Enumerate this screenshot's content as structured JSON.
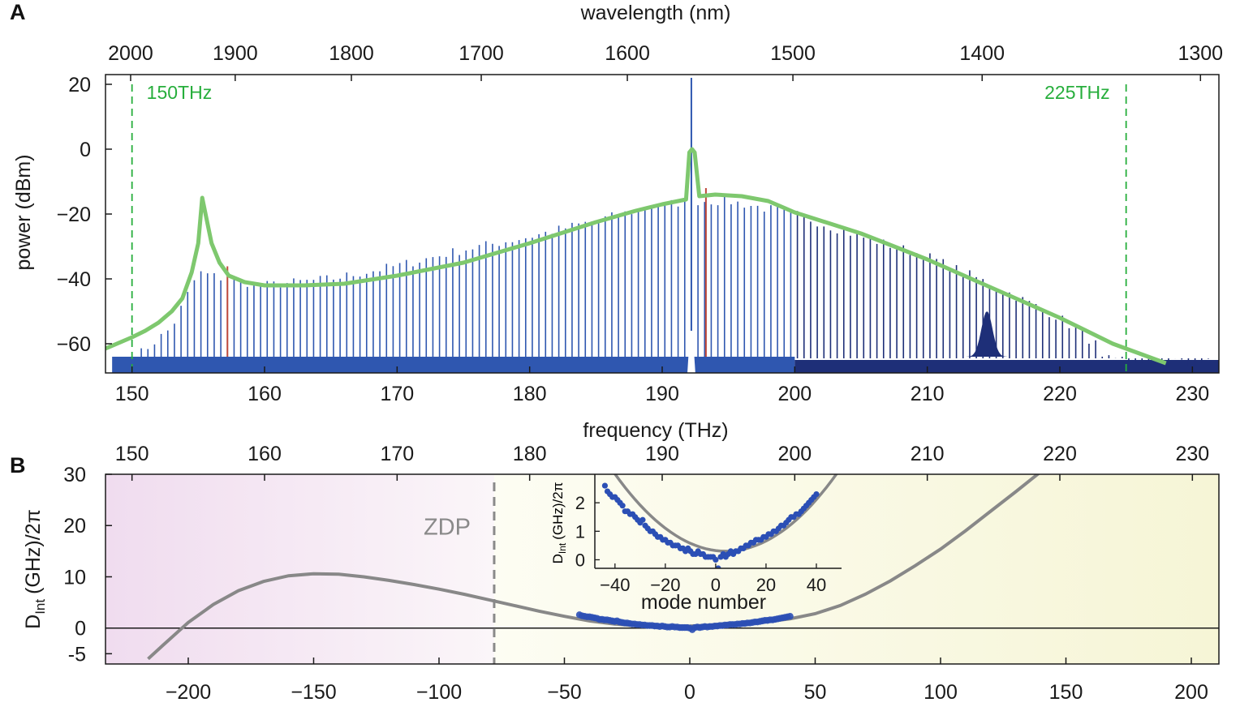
{
  "colors": {
    "comb_light": "#2f57b0",
    "comb_dark": "#1e2f78",
    "envelope": "#7ec86e",
    "threshold": "#27ae3c",
    "residual_red": "#c04a3c",
    "dispersion_curve": "#888888",
    "measured_points": "#2b4fb5",
    "zdp_line": "#8a8a8a",
    "normal_region": "#f3e2f3",
    "anomalous_region": "#f7f7dc"
  },
  "chart_data": [
    {
      "panel": "A",
      "type": "line",
      "xlabel": "frequency (THz)",
      "x2label": "wavelength (nm)",
      "ylabel": "power (dBm)",
      "xlim": [
        148,
        232
      ],
      "ylim": [
        -69,
        23
      ],
      "xticks": [
        150,
        160,
        170,
        180,
        190,
        200,
        210,
        220,
        230
      ],
      "yticks": [
        20,
        0,
        -20,
        -40,
        -60
      ],
      "x2ticks": [
        2000,
        1900,
        1800,
        1700,
        1600,
        1500,
        1400,
        1300
      ],
      "annotations": [
        {
          "text": "150THz",
          "x": 150
        },
        {
          "text": "225THz",
          "x": 225
        }
      ],
      "threshold_lines_x": [
        150,
        225
      ],
      "pump": {
        "x": 192.2,
        "y": 22
      },
      "comb_spacing_thz": 0.5,
      "comb_envelope_points": [
        [
          150,
          -65
        ],
        [
          153,
          -55
        ],
        [
          155,
          -38
        ],
        [
          157,
          -40
        ],
        [
          160,
          -42
        ],
        [
          165,
          -40
        ],
        [
          170,
          -36
        ],
        [
          175,
          -31
        ],
        [
          180,
          -27
        ],
        [
          185,
          -22
        ],
        [
          189,
          -18
        ],
        [
          192,
          -16
        ],
        [
          195,
          -16
        ],
        [
          200,
          -20
        ],
        [
          205,
          -27
        ],
        [
          210,
          -33
        ],
        [
          215,
          -42
        ],
        [
          220,
          -52
        ],
        [
          222,
          -58
        ],
        [
          224,
          -64
        ],
        [
          226,
          -66
        ]
      ],
      "dispersive_wave_bumps": [
        {
          "x": 214.5,
          "peak_dB": -50,
          "width_thz": 1.0
        }
      ],
      "noise_floor_dBm": -64,
      "series": [
        {
          "curve": "envelope",
          "x": [
            148,
            150,
            151,
            152,
            153,
            153.8,
            154.5,
            155,
            155.3,
            155.6,
            156,
            156.6,
            157.3,
            158.5,
            160,
            163,
            166,
            170,
            175,
            180,
            185,
            188,
            190,
            191.2,
            191.8,
            192.05,
            192.25,
            192.45,
            192.8,
            194,
            196,
            198,
            200,
            205,
            210,
            215,
            220,
            222,
            224,
            226,
            228
          ],
          "y": [
            -61.5,
            -58,
            -56,
            -53.5,
            -50,
            -46,
            -38,
            -29,
            -15,
            -21,
            -29,
            -35,
            -39,
            -41,
            -42,
            -42,
            -41.5,
            -39,
            -35,
            -29,
            -22.5,
            -19,
            -17,
            -16,
            -15.5,
            -1,
            0,
            -1,
            -14.5,
            -14,
            -14.5,
            -16,
            -19.5,
            -26,
            -34,
            -43,
            -52,
            -56,
            -60,
            -63,
            -66
          ]
        }
      ],
      "residual_pump_lines_x": [
        157.2,
        193.3
      ]
    },
    {
      "panel": "B",
      "type": "line",
      "xlabel": "mode number",
      "x2label": "",
      "ylabel": "D_Int (GHz)/2π",
      "ylabel_main": "D",
      "ylabel_sub": "Int",
      "ylabel_rest": "(GHz)/2π",
      "xlim": [
        -233,
        211
      ],
      "ylim": [
        -7,
        30
      ],
      "xticks": [
        -200,
        -150,
        -100,
        -50,
        0,
        50,
        100,
        150,
        200
      ],
      "yticks": [
        30,
        20,
        10,
        0,
        -5
      ],
      "x2ticks": [
        150,
        160,
        170,
        180,
        190,
        200,
        210,
        220,
        230
      ],
      "zdp": {
        "label": "ZDP",
        "x": -78
      },
      "fit_curve": {
        "x": [
          -216,
          -210,
          -200,
          -190,
          -180,
          -170,
          -160,
          -150,
          -140,
          -130,
          -120,
          -110,
          -100,
          -90,
          -80,
          -70,
          -60,
          -50,
          -40,
          -30,
          -20,
          -10,
          0,
          10,
          20,
          30,
          40,
          50,
          60,
          70,
          80,
          90,
          100,
          110,
          120,
          130,
          140
        ],
        "y": [
          -6,
          -3.3,
          1.1,
          4.6,
          7.3,
          9.1,
          10.2,
          10.6,
          10.5,
          10.0,
          9.3,
          8.5,
          7.6,
          6.6,
          5.5,
          4.4,
          3.3,
          2.3,
          1.4,
          0.8,
          0.4,
          0.3,
          0.4,
          0.6,
          0.9,
          1.2,
          1.8,
          2.8,
          4.4,
          6.6,
          9.2,
          12.2,
          15.4,
          19.0,
          22.8,
          26.6,
          30.5
        ]
      },
      "measured_points": {
        "x_start": -44,
        "x_end": 40,
        "step": 1,
        "y": [
          2.6,
          2.4,
          2.3,
          2.2,
          2.2,
          2.1,
          2.0,
          1.9,
          1.7,
          1.7,
          1.6,
          1.6,
          1.5,
          1.4,
          1.3,
          1.4,
          1.2,
          1.1,
          1.0,
          1.0,
          0.9,
          0.8,
          0.8,
          0.7,
          0.7,
          0.6,
          0.6,
          0.5,
          0.5,
          0.5,
          0.4,
          0.4,
          0.3,
          0.4,
          0.3,
          0.2,
          0.2,
          0.3,
          0.2,
          0.2,
          0.1,
          0.1,
          0.1,
          0.1,
          0.0,
          -0.3,
          0.1,
          0.2,
          0.1,
          0.2,
          0.3,
          0.2,
          0.3,
          0.3,
          0.4,
          0.4,
          0.5,
          0.5,
          0.6,
          0.6,
          0.7,
          0.7,
          0.7,
          0.8,
          0.8,
          0.9,
          0.9,
          1.0,
          1.0,
          1.1,
          1.2,
          1.2,
          1.3,
          1.4,
          1.5,
          1.5,
          1.6,
          1.6,
          1.7,
          1.8,
          1.9,
          2.0,
          2.1,
          2.2,
          2.3
        ]
      },
      "inset": {
        "xlabel": "mode number",
        "ylabel_main": "D",
        "ylabel_sub": "Int",
        "ylabel_rest": "(GHz)/2π",
        "xlim": [
          -48,
          50
        ],
        "ylim": [
          -0.3,
          3.0
        ],
        "xticks": [
          -40,
          -20,
          0,
          20,
          40
        ],
        "xtick_labels": [
          "−40",
          "−20",
          "0",
          "20",
          "40"
        ],
        "yticks": [
          0,
          1,
          2
        ]
      }
    }
  ]
}
